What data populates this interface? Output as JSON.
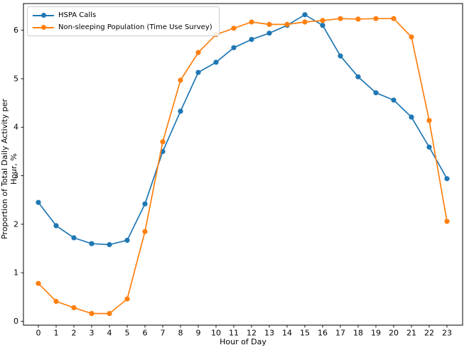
{
  "figure": {
    "xlabel": "Hour of Day",
    "ylabel": "Proportion of Total Daily Activity per Hour, %"
  },
  "legend": {
    "items": [
      {
        "label": "HSPA Calls",
        "color": "#1f77b4"
      },
      {
        "label": "Non-sleeping Population (Time Use Survey)",
        "color": "#ff7f0e"
      }
    ]
  },
  "chart_data": {
    "type": "line",
    "title": "",
    "xlabel": "Hour of Day",
    "ylabel": "Proportion of Total Daily Activity per Hour, %",
    "x": [
      0,
      1,
      2,
      3,
      4,
      5,
      6,
      7,
      8,
      9,
      10,
      11,
      12,
      13,
      14,
      15,
      16,
      17,
      18,
      19,
      20,
      21,
      22,
      23
    ],
    "series": [
      {
        "name": "HSPA Calls",
        "color": "#1f77b4",
        "marker": "circle",
        "values": [
          2.45,
          1.97,
          1.72,
          1.6,
          1.58,
          1.67,
          2.42,
          3.5,
          4.33,
          5.13,
          5.34,
          5.64,
          5.81,
          5.94,
          6.1,
          6.32,
          6.1,
          5.47,
          5.04,
          4.71,
          4.56,
          4.21,
          3.59,
          2.94
        ]
      },
      {
        "name": "Non-sleeping Population (Time Use Survey)",
        "color": "#ff7f0e",
        "marker": "circle",
        "values": [
          0.78,
          0.41,
          0.28,
          0.16,
          0.16,
          0.46,
          1.85,
          3.7,
          4.97,
          5.54,
          5.91,
          6.04,
          6.17,
          6.12,
          6.12,
          6.17,
          6.2,
          6.24,
          6.23,
          6.24,
          6.24,
          5.86,
          4.14,
          2.06
        ]
      }
    ],
    "xticks": [
      0,
      1,
      2,
      3,
      4,
      5,
      6,
      7,
      8,
      9,
      10,
      11,
      12,
      13,
      14,
      15,
      16,
      17,
      18,
      19,
      20,
      21,
      22,
      23
    ],
    "yticks": [
      0,
      1,
      2,
      3,
      4,
      5,
      6
    ],
    "xlim": [
      -0.84,
      23.88
    ],
    "ylim": [
      -0.08,
      6.55
    ],
    "grid": false,
    "legend_position": "upper left"
  }
}
